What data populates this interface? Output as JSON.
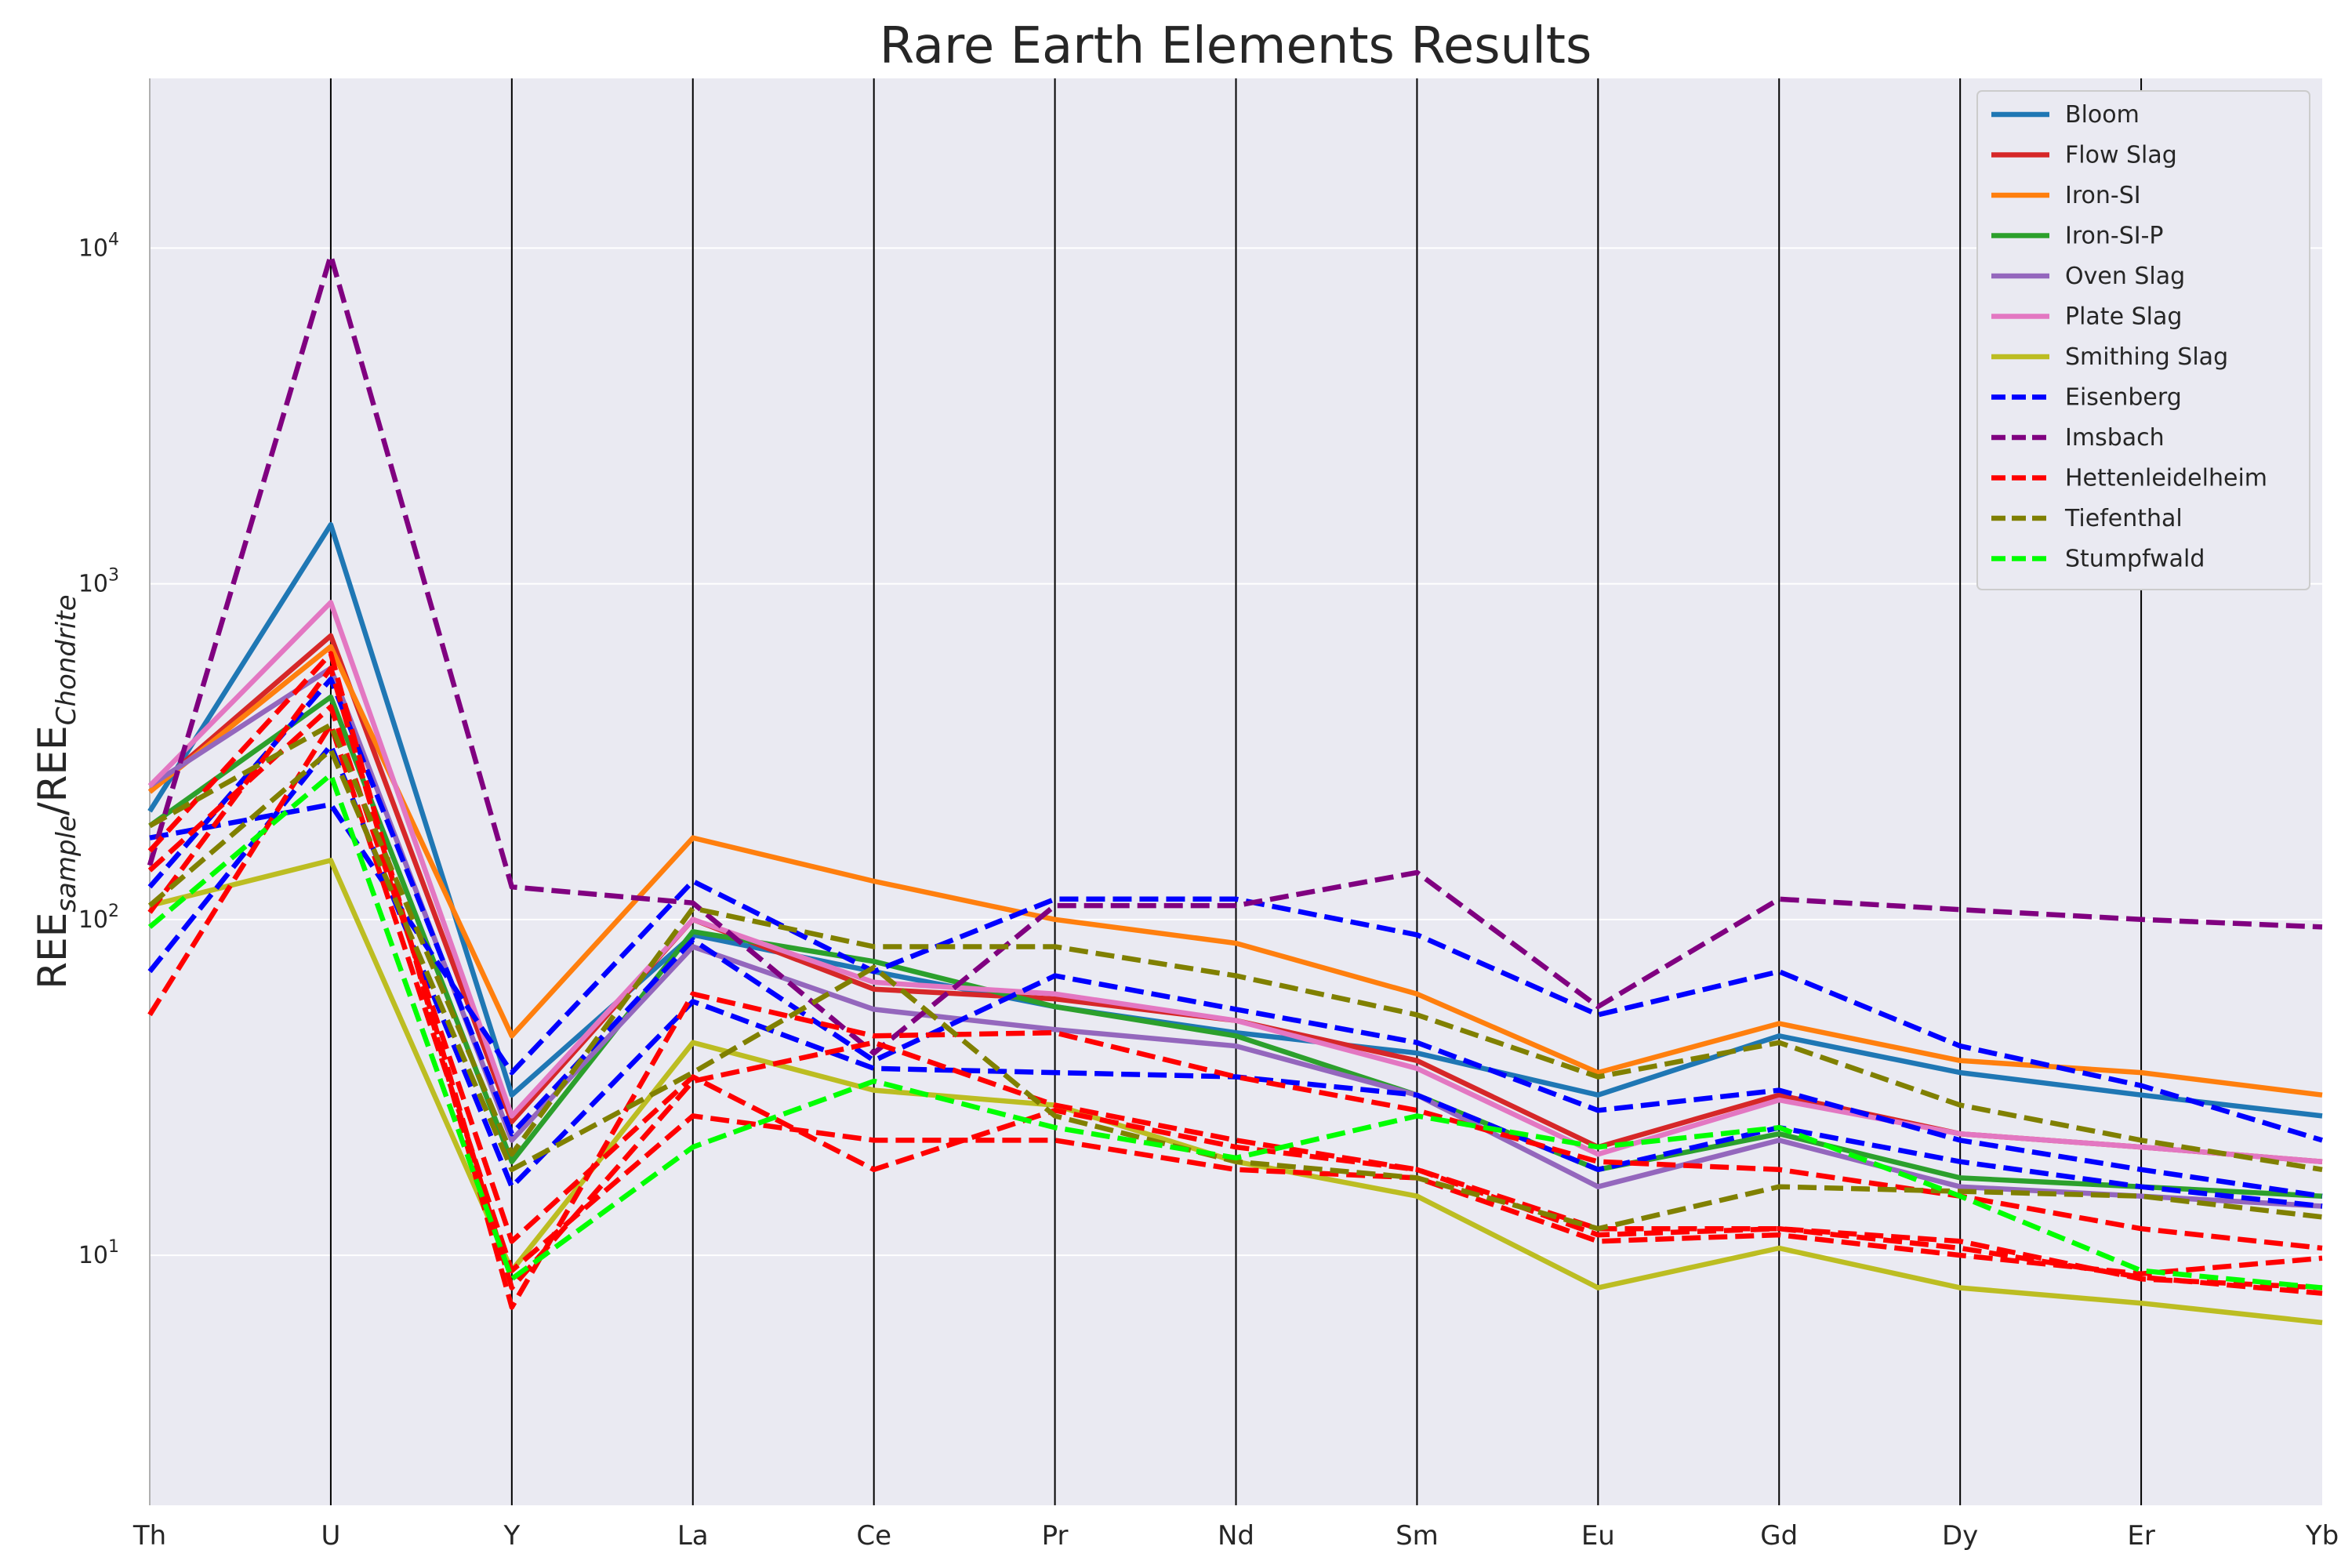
{
  "chart_data": {
    "type": "line",
    "title": "Rare Earth Elements  Results",
    "ylabel": {
      "base": "REE",
      "sample_sub": "sample",
      "sep": "/",
      "chondrite_sub": "Chondrite"
    },
    "yscale": "log",
    "ylim": [
      1.8,
      32000
    ],
    "yticks": [
      {
        "value": 10,
        "base": "10",
        "exp": "1"
      },
      {
        "value": 100,
        "base": "10",
        "exp": "2"
      },
      {
        "value": 1000,
        "base": "10",
        "exp": "3"
      },
      {
        "value": 10000,
        "base": "10",
        "exp": "4"
      }
    ],
    "categories": [
      "Th",
      "U",
      "Y",
      "La",
      "Ce",
      "Pr",
      "Nd",
      "Sm",
      "Eu",
      "Gd",
      "Dy",
      "Er",
      "Yb"
    ],
    "grid": "horizontal",
    "legend": "top-right",
    "series": [
      {
        "name": "Bloom",
        "color": "#1f77b4",
        "style": "solid",
        "values": [
          210,
          1500,
          30,
          90,
          70,
          55,
          46,
          40,
          30,
          45,
          35,
          30,
          26
        ]
      },
      {
        "name": "Flow Slag",
        "color": "#d62728",
        "style": "solid",
        "values": [
          240,
          700,
          25,
          100,
          62,
          58,
          50,
          38,
          21,
          30,
          23,
          21,
          19
        ]
      },
      {
        "name": "Iron-SI",
        "color": "#ff7f0e",
        "style": "solid",
        "values": [
          240,
          650,
          45,
          175,
          130,
          100,
          85,
          60,
          35,
          49,
          38,
          35,
          30
        ]
      },
      {
        "name": "Iron-SI-P",
        "color": "#2ca02c",
        "style": "solid",
        "values": [
          190,
          460,
          19,
          92,
          75,
          55,
          45,
          30,
          18,
          23,
          17,
          16,
          15
        ]
      },
      {
        "name": "Oven Slag",
        "color": "#9467bd",
        "style": "solid",
        "values": [
          250,
          560,
          22,
          83,
          54,
          47,
          42,
          30,
          16,
          22,
          16,
          15,
          14
        ]
      },
      {
        "name": "Plate Slag",
        "color": "#e377c2",
        "style": "solid",
        "values": [
          250,
          880,
          26,
          100,
          65,
          60,
          50,
          36,
          20,
          29,
          23,
          21,
          19
        ]
      },
      {
        "name": "Smithing Slag",
        "color": "#bcbd22",
        "style": "solid",
        "values": [
          110,
          150,
          9,
          43,
          31,
          28,
          19,
          15,
          8,
          10.5,
          8,
          7.2,
          6.3
        ]
      },
      {
        "name": "Eisenberg",
        "color": "#0000ff",
        "style": "dashed",
        "values": [
          [
            175,
            220,
            35,
            130,
            70,
            115,
            115,
            90,
            52,
            70,
            42,
            32,
            22
          ],
          [
            125,
            520,
            23,
            87,
            38,
            68,
            54,
            43,
            27,
            31,
            22,
            18,
            15
          ],
          [
            70,
            330,
            16,
            57,
            36,
            35,
            34,
            30,
            18,
            24,
            19,
            16,
            14
          ]
        ]
      },
      {
        "name": "Imsbach",
        "color": "#800080",
        "style": "dashed",
        "values": [
          145,
          9500,
          125,
          112,
          40,
          110,
          110,
          138,
          55,
          115,
          107,
          100,
          95
        ]
      },
      {
        "name": "Hettenleidelheim",
        "color": "#ff0000",
        "style": "dashed",
        "values": [
          [
            160,
            620,
            7,
            60,
            45,
            46,
            34,
            27,
            19,
            18,
            15,
            12,
            10.5
          ],
          [
            105,
            560,
            8,
            33,
            43,
            28,
            22,
            18,
            12,
            12,
            11,
            8.5,
            8
          ],
          [
            52,
            380,
            9,
            26,
            22,
            22,
            18,
            17,
            11,
            11.5,
            10,
            8.8,
            9.8
          ],
          [
            140,
            430,
            11,
            34,
            18,
            27,
            21,
            18,
            11.5,
            12,
            10.5,
            8.6,
            7.7
          ]
        ]
      },
      {
        "name": "Tiefenthal",
        "color": "#808000",
        "style": "dashed",
        "values": [
          [
            190,
            380,
            20,
            108,
            83,
            83,
            68,
            52,
            34,
            43,
            28,
            22,
            18
          ],
          [
            110,
            320,
            18,
            35,
            72,
            26,
            19,
            17,
            12,
            16,
            15.5,
            15,
            13
          ]
        ]
      },
      {
        "name": "Stumpfwald",
        "color": "#00ff00",
        "style": "dashed",
        "values": [
          95,
          270,
          8.5,
          21,
          33,
          24,
          19.5,
          26,
          21,
          24,
          15,
          9,
          8
        ]
      }
    ]
  }
}
